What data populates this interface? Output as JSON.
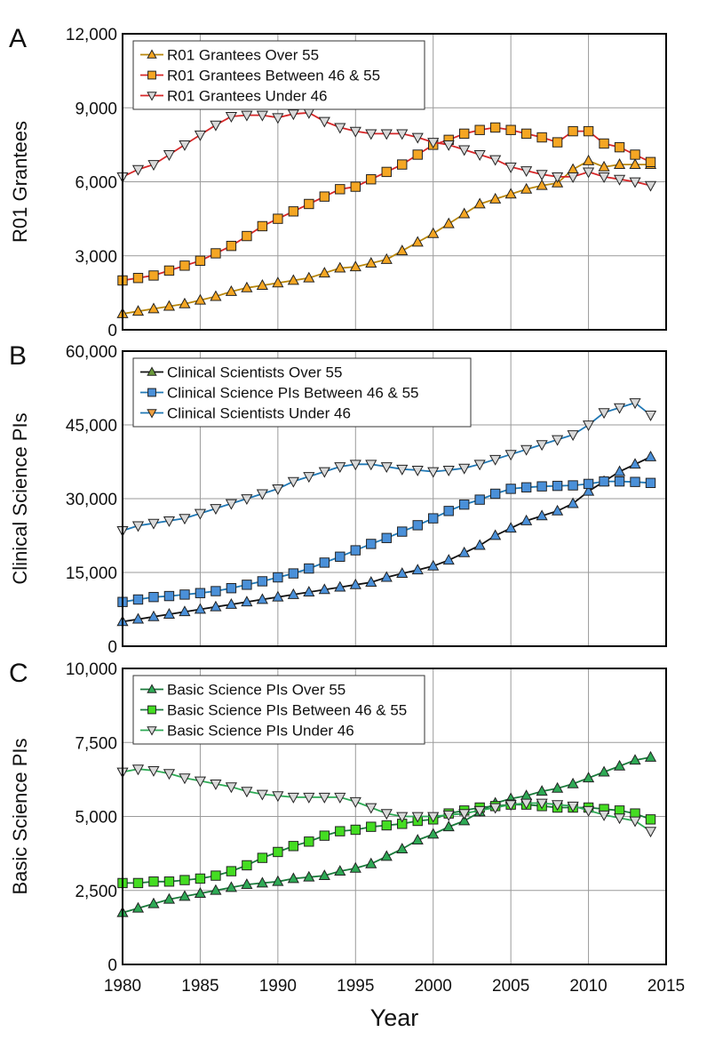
{
  "x_axis_label": "Year",
  "chart_data": [
    {
      "type": "line",
      "panel_label": "A",
      "ylabel": "R01 Grantees",
      "xlim": [
        1980,
        2015
      ],
      "ylim": [
        0,
        12000
      ],
      "xticks": [
        "1980",
        "1985",
        "1990",
        "1995",
        "2000",
        "2005",
        "2010",
        "2015"
      ],
      "yticks": [
        "0",
        "3,000",
        "6,000",
        "9,000",
        "12,000"
      ],
      "grid": true,
      "legend_position": "top-left",
      "x": [
        1980,
        1981,
        1982,
        1983,
        1984,
        1985,
        1986,
        1987,
        1988,
        1989,
        1990,
        1991,
        1992,
        1993,
        1994,
        1995,
        1996,
        1997,
        1998,
        1999,
        2000,
        2001,
        2002,
        2003,
        2004,
        2005,
        2006,
        2007,
        2008,
        2009,
        2010,
        2011,
        2012,
        2013,
        2014
      ],
      "series": [
        {
          "name": "R01 Grantees Over 55",
          "marker": "triangle-up",
          "line_color": "#b8860b",
          "fill": "#f5a623",
          "values": [
            650,
            750,
            850,
            950,
            1050,
            1200,
            1350,
            1550,
            1700,
            1800,
            1900,
            2000,
            2100,
            2300,
            2500,
            2550,
            2700,
            2850,
            3200,
            3550,
            3900,
            4300,
            4700,
            5100,
            5300,
            5500,
            5700,
            5850,
            5950,
            6500,
            6850,
            6600,
            6700,
            6700,
            6700
          ]
        },
        {
          "name": "R01 Grantees Between 46 & 55",
          "marker": "square",
          "line_color": "#d62728",
          "fill": "#f5a623",
          "values": [
            2000,
            2100,
            2200,
            2400,
            2600,
            2800,
            3100,
            3400,
            3800,
            4200,
            4500,
            4800,
            5100,
            5400,
            5700,
            5800,
            6100,
            6400,
            6700,
            7100,
            7500,
            7700,
            7950,
            8100,
            8200,
            8100,
            7950,
            7800,
            7600,
            8050,
            8050,
            7550,
            7400,
            7100,
            6800
          ]
        },
        {
          "name": "R01 Grantees Under 46",
          "marker": "triangle-down",
          "line_color": "#d62728",
          "fill": "#d9d9d9",
          "values": [
            6200,
            6500,
            6700,
            7100,
            7500,
            7900,
            8300,
            8650,
            8700,
            8700,
            8600,
            8750,
            8800,
            8450,
            8200,
            8050,
            7950,
            7950,
            7950,
            7800,
            7600,
            7500,
            7300,
            7100,
            6900,
            6600,
            6450,
            6300,
            6200,
            6200,
            6400,
            6200,
            6100,
            6000,
            5850
          ]
        }
      ]
    },
    {
      "type": "line",
      "panel_label": "B",
      "ylabel": "Clinical Science PIs",
      "xlim": [
        1980,
        2015
      ],
      "ylim": [
        0,
        60000
      ],
      "xticks": [
        "1980",
        "1985",
        "1990",
        "1995",
        "2000",
        "2005",
        "2010",
        "2015"
      ],
      "yticks": [
        "0",
        "15,000",
        "30,000",
        "45,000",
        "60,000"
      ],
      "grid": true,
      "legend_position": "top-left",
      "x": [
        1980,
        1981,
        1982,
        1983,
        1984,
        1985,
        1986,
        1987,
        1988,
        1989,
        1990,
        1991,
        1992,
        1993,
        1994,
        1995,
        1996,
        1997,
        1998,
        1999,
        2000,
        2001,
        2002,
        2003,
        2004,
        2005,
        2006,
        2007,
        2008,
        2009,
        2010,
        2011,
        2012,
        2013,
        2014
      ],
      "series": [
        {
          "name": "Clinical Scientists Over 55",
          "marker": "triangle-up",
          "line_color": "#111111",
          "fill": "#4a90d9",
          "legend_marker_color": "#6a9a3a",
          "values": [
            5000,
            5500,
            6000,
            6500,
            7000,
            7500,
            8000,
            8500,
            9000,
            9500,
            10000,
            10500,
            11000,
            11500,
            12000,
            12500,
            13000,
            14000,
            14800,
            15500,
            16300,
            17500,
            19000,
            20500,
            22500,
            24000,
            25500,
            26500,
            27500,
            29000,
            31500,
            33500,
            35500,
            37000,
            38500
          ]
        },
        {
          "name": "Clinical Science PIs Between 46 & 55",
          "marker": "square",
          "line_color": "#1f77b4",
          "fill": "#4a90d9",
          "values": [
            9000,
            9500,
            10000,
            10200,
            10500,
            10800,
            11200,
            11800,
            12500,
            13200,
            14000,
            14800,
            15800,
            17000,
            18200,
            19500,
            20800,
            22000,
            23300,
            24600,
            26000,
            27500,
            28800,
            29800,
            31000,
            32000,
            32300,
            32500,
            32600,
            32700,
            33000,
            33500,
            33500,
            33400,
            33200
          ]
        },
        {
          "name": "Clinical Scientists Under 46",
          "marker": "triangle-down",
          "line_color": "#1f77b4",
          "fill": "#d9d9d9",
          "legend_marker_color": "#f0a040",
          "values": [
            23500,
            24500,
            25000,
            25500,
            26000,
            27000,
            28000,
            29000,
            30000,
            31000,
            32000,
            33500,
            34500,
            35500,
            36500,
            37000,
            37000,
            36500,
            36000,
            35800,
            35500,
            35800,
            36200,
            37000,
            38000,
            39000,
            40000,
            41000,
            42000,
            43000,
            45000,
            47500,
            48500,
            49500,
            47000
          ]
        }
      ]
    },
    {
      "type": "line",
      "panel_label": "C",
      "ylabel": "Basic Science PIs",
      "xlim": [
        1980,
        2015
      ],
      "ylim": [
        0,
        10000
      ],
      "xticks": [
        "1980",
        "1985",
        "1990",
        "1995",
        "2000",
        "2005",
        "2010",
        "2015"
      ],
      "yticks": [
        "0",
        "2,500",
        "5,000",
        "7,500",
        "10,000"
      ],
      "grid": true,
      "legend_position": "top-left",
      "x": [
        1980,
        1981,
        1982,
        1983,
        1984,
        1985,
        1986,
        1987,
        1988,
        1989,
        1990,
        1991,
        1992,
        1993,
        1994,
        1995,
        1996,
        1997,
        1998,
        1999,
        2000,
        2001,
        2002,
        2003,
        2004,
        2005,
        2006,
        2007,
        2008,
        2009,
        2010,
        2011,
        2012,
        2013,
        2014
      ],
      "series": [
        {
          "name": "Basic Science PIs Over 55",
          "marker": "triangle-up",
          "line_color": "#1a7a3a",
          "fill": "#2eaa55",
          "values": [
            1750,
            1900,
            2050,
            2200,
            2300,
            2400,
            2500,
            2600,
            2700,
            2750,
            2800,
            2900,
            2950,
            3000,
            3150,
            3250,
            3400,
            3650,
            3900,
            4200,
            4400,
            4650,
            4850,
            5150,
            5450,
            5600,
            5700,
            5850,
            5950,
            6100,
            6300,
            6500,
            6700,
            6900,
            7000
          ]
        },
        {
          "name": "Basic Science PIs Between 46 & 55",
          "marker": "square",
          "line_color": "#1a7a3a",
          "fill": "#44dd22",
          "values": [
            2750,
            2750,
            2800,
            2800,
            2850,
            2900,
            3000,
            3150,
            3350,
            3600,
            3800,
            4000,
            4150,
            4350,
            4500,
            4550,
            4650,
            4700,
            4750,
            4850,
            4900,
            5100,
            5200,
            5300,
            5350,
            5400,
            5400,
            5350,
            5300,
            5300,
            5300,
            5250,
            5200,
            5100,
            4900
          ]
        },
        {
          "name": "Basic Science PIs Under 46",
          "marker": "triangle-down",
          "line_color": "#2eaa55",
          "fill": "#d9d9d9",
          "values": [
            6500,
            6600,
            6550,
            6450,
            6300,
            6200,
            6100,
            6000,
            5850,
            5750,
            5700,
            5650,
            5650,
            5650,
            5650,
            5500,
            5300,
            5100,
            5000,
            5000,
            5000,
            5050,
            5100,
            5200,
            5300,
            5400,
            5450,
            5450,
            5400,
            5350,
            5200,
            5050,
            4950,
            4850,
            4500
          ]
        }
      ]
    }
  ]
}
